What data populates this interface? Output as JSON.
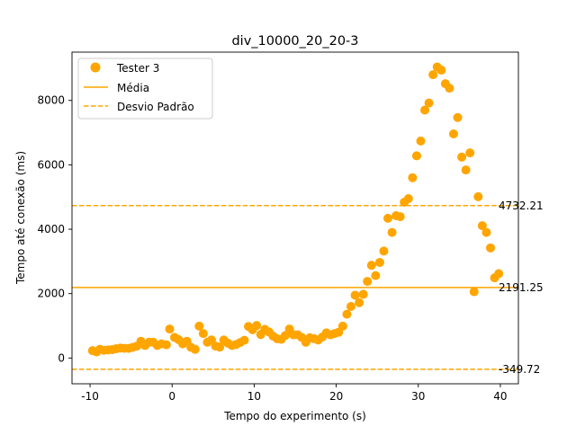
{
  "chart_data": {
    "type": "scatter",
    "title": "div_10000_20_20-3",
    "xlabel": "Tempo do experimento (s)",
    "ylabel": "Tempo até conexão (ms)",
    "xlim": [
      -12.2,
      42.2
    ],
    "ylim": [
      -800,
      9500
    ],
    "xticks": [
      -10,
      0,
      10,
      20,
      30,
      40
    ],
    "yticks": [
      0,
      2000,
      4000,
      6000,
      8000
    ],
    "grid": false,
    "legend_position": "upper left",
    "colors": {
      "series": "#ffa500"
    },
    "legend": [
      {
        "label": "Tester 3",
        "kind": "marker"
      },
      {
        "label": "Média",
        "kind": "solid"
      },
      {
        "label": "Desvio Padrão",
        "kind": "dashed"
      }
    ],
    "hlines": [
      {
        "value": 4732.21,
        "label": "4732.21",
        "style": "dashed"
      },
      {
        "value": 2191.25,
        "label": "2191.25",
        "style": "solid"
      },
      {
        "value": -349.72,
        "label": "-349.72",
        "style": "dashed"
      }
    ],
    "series": [
      {
        "name": "Tester 3",
        "points": [
          [
            -9.7,
            230
          ],
          [
            -9.2,
            190
          ],
          [
            -8.8,
            270
          ],
          [
            -8.3,
            240
          ],
          [
            -7.8,
            250
          ],
          [
            -7.3,
            260
          ],
          [
            -6.8,
            290
          ],
          [
            -6.3,
            310
          ],
          [
            -5.8,
            300
          ],
          [
            -5.3,
            300
          ],
          [
            -4.8,
            330
          ],
          [
            -4.3,
            370
          ],
          [
            -3.8,
            520
          ],
          [
            -3.3,
            390
          ],
          [
            -2.8,
            490
          ],
          [
            -2.3,
            490
          ],
          [
            -1.8,
            390
          ],
          [
            -1.3,
            440
          ],
          [
            -0.7,
            410
          ],
          [
            -0.3,
            900
          ],
          [
            0.3,
            640
          ],
          [
            0.8,
            570
          ],
          [
            1.3,
            440
          ],
          [
            1.8,
            520
          ],
          [
            2.3,
            330
          ],
          [
            2.8,
            270
          ],
          [
            3.3,
            990
          ],
          [
            3.8,
            760
          ],
          [
            4.3,
            490
          ],
          [
            4.8,
            560
          ],
          [
            5.3,
            370
          ],
          [
            5.8,
            340
          ],
          [
            6.3,
            560
          ],
          [
            6.8,
            460
          ],
          [
            7.3,
            390
          ],
          [
            7.8,
            420
          ],
          [
            8.3,
            480
          ],
          [
            8.8,
            550
          ],
          [
            9.3,
            980
          ],
          [
            9.8,
            880
          ],
          [
            10.3,
            1010
          ],
          [
            10.8,
            730
          ],
          [
            11.3,
            890
          ],
          [
            11.8,
            810
          ],
          [
            12.3,
            680
          ],
          [
            12.8,
            600
          ],
          [
            13.3,
            580
          ],
          [
            13.8,
            700
          ],
          [
            14.3,
            900
          ],
          [
            14.8,
            720
          ],
          [
            15.3,
            720
          ],
          [
            15.8,
            640
          ],
          [
            16.3,
            490
          ],
          [
            16.8,
            630
          ],
          [
            17.3,
            600
          ],
          [
            17.8,
            560
          ],
          [
            18.3,
            650
          ],
          [
            18.8,
            780
          ],
          [
            19.3,
            720
          ],
          [
            19.8,
            760
          ],
          [
            20.3,
            800
          ],
          [
            20.8,
            990
          ],
          [
            21.3,
            1360
          ],
          [
            21.8,
            1600
          ],
          [
            22.3,
            1950
          ],
          [
            22.8,
            1720
          ],
          [
            23.3,
            1980
          ],
          [
            23.8,
            2380
          ],
          [
            24.3,
            2880
          ],
          [
            24.8,
            2560
          ],
          [
            25.3,
            2970
          ],
          [
            25.8,
            3320
          ],
          [
            26.3,
            4340
          ],
          [
            26.8,
            3900
          ],
          [
            27.3,
            4420
          ],
          [
            27.8,
            4390
          ],
          [
            28.3,
            4840
          ],
          [
            28.8,
            4950
          ],
          [
            29.3,
            5600
          ],
          [
            29.8,
            6280
          ],
          [
            30.3,
            6740
          ],
          [
            30.8,
            7700
          ],
          [
            31.3,
            7920
          ],
          [
            31.8,
            8800
          ],
          [
            32.3,
            9040
          ],
          [
            32.8,
            8940
          ],
          [
            33.3,
            8520
          ],
          [
            33.8,
            8380
          ],
          [
            34.3,
            6960
          ],
          [
            34.8,
            7470
          ],
          [
            35.3,
            6240
          ],
          [
            35.8,
            5840
          ],
          [
            36.3,
            6370
          ],
          [
            36.8,
            2060
          ],
          [
            37.3,
            5010
          ],
          [
            37.8,
            4110
          ],
          [
            38.3,
            3900
          ],
          [
            38.8,
            3420
          ],
          [
            39.3,
            2490
          ],
          [
            39.8,
            2620
          ]
        ]
      }
    ]
  }
}
